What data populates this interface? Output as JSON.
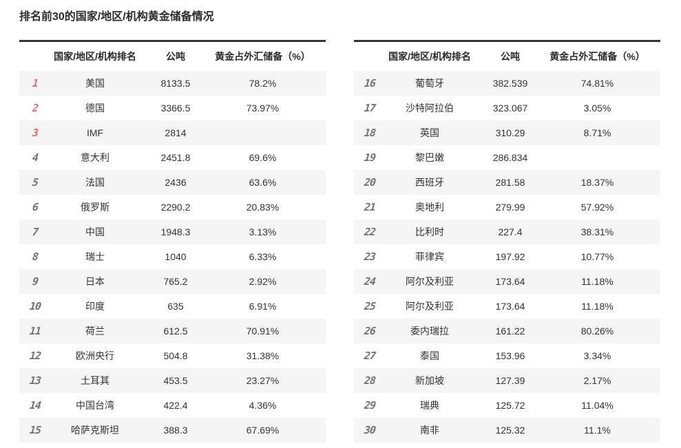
{
  "page_title": "排名前30的国家/地区/机构黄金储备情况",
  "colors": {
    "rank_top3": "#f4696a",
    "rank_default": "#737373",
    "text": "#333333",
    "row_stripe": "#f5f5f5",
    "table_top_border": "#333333"
  },
  "chart_data": {
    "type": "table",
    "title": "排名前30的国家/地区/机构黄金储备情况",
    "column_headers": {
      "rank": "",
      "name": "国家/地区/机构排名",
      "tons": "公吨",
      "percent": "黄金占外汇储备（%）"
    },
    "layout": {
      "tables_side_by_side": 2,
      "rows_per_table": 15,
      "zebra_striping": true,
      "top3_ranks_red": true
    },
    "rows": [
      {
        "rank": "1",
        "name": "美国",
        "tons": "8133.5",
        "percent": "78.2%",
        "highlight": true
      },
      {
        "rank": "2",
        "name": "德国",
        "tons": "3366.5",
        "percent": "73.97%",
        "highlight": true
      },
      {
        "rank": "3",
        "name": "IMF",
        "tons": "2814",
        "percent": "",
        "highlight": true
      },
      {
        "rank": "4",
        "name": "意大利",
        "tons": "2451.8",
        "percent": "69.6%",
        "highlight": false
      },
      {
        "rank": "5",
        "name": "法国",
        "tons": "2436",
        "percent": "63.6%",
        "highlight": false
      },
      {
        "rank": "6",
        "name": "俄罗斯",
        "tons": "2290.2",
        "percent": "20.83%",
        "highlight": false
      },
      {
        "rank": "7",
        "name": "中国",
        "tons": "1948.3",
        "percent": "3.13%",
        "highlight": false
      },
      {
        "rank": "8",
        "name": "瑞士",
        "tons": "1040",
        "percent": "6.33%",
        "highlight": false
      },
      {
        "rank": "9",
        "name": "日本",
        "tons": "765.2",
        "percent": "2.92%",
        "highlight": false
      },
      {
        "rank": "10",
        "name": "印度",
        "tons": "635",
        "percent": "6.91%",
        "highlight": false
      },
      {
        "rank": "11",
        "name": "荷兰",
        "tons": "612.5",
        "percent": "70.91%",
        "highlight": false
      },
      {
        "rank": "12",
        "name": "欧洲央行",
        "tons": "504.8",
        "percent": "31.38%",
        "highlight": false
      },
      {
        "rank": "13",
        "name": "土耳其",
        "tons": "453.5",
        "percent": "23.27%",
        "highlight": false
      },
      {
        "rank": "14",
        "name": "中国台湾",
        "tons": "422.4",
        "percent": "4.36%",
        "highlight": false
      },
      {
        "rank": "15",
        "name": "哈萨克斯坦",
        "tons": "388.3",
        "percent": "67.69%",
        "highlight": false
      },
      {
        "rank": "16",
        "name": "葡萄牙",
        "tons": "382.539",
        "percent": "74.81%",
        "highlight": false
      },
      {
        "rank": "17",
        "name": "沙特阿拉伯",
        "tons": "323.067",
        "percent": "3.05%",
        "highlight": false
      },
      {
        "rank": "18",
        "name": "英国",
        "tons": "310.29",
        "percent": "8.71%",
        "highlight": false
      },
      {
        "rank": "19",
        "name": "黎巴嫩",
        "tons": "286.834",
        "percent": "",
        "highlight": false
      },
      {
        "rank": "20",
        "name": "西班牙",
        "tons": "281.58",
        "percent": "18.37%",
        "highlight": false
      },
      {
        "rank": "21",
        "name": "奥地利",
        "tons": "279.99",
        "percent": "57.92%",
        "highlight": false
      },
      {
        "rank": "22",
        "name": "比利时",
        "tons": "227.4",
        "percent": "38.31%",
        "highlight": false
      },
      {
        "rank": "23",
        "name": "菲律宾",
        "tons": "197.92",
        "percent": "10.77%",
        "highlight": false
      },
      {
        "rank": "24",
        "name": "阿尔及利亚",
        "tons": "173.64",
        "percent": "11.18%",
        "highlight": false
      },
      {
        "rank": "25",
        "name": "阿尔及利亚",
        "tons": "173.64",
        "percent": "11.18%",
        "highlight": false
      },
      {
        "rank": "26",
        "name": "委内瑞拉",
        "tons": "161.22",
        "percent": "80.26%",
        "highlight": false
      },
      {
        "rank": "27",
        "name": "泰国",
        "tons": "153.96",
        "percent": "3.34%",
        "highlight": false
      },
      {
        "rank": "28",
        "name": "新加坡",
        "tons": "127.39",
        "percent": "2.17%",
        "highlight": false
      },
      {
        "rank": "29",
        "name": "瑞典",
        "tons": "125.72",
        "percent": "11.04%",
        "highlight": false
      },
      {
        "rank": "30",
        "name": "南非",
        "tons": "125.32",
        "percent": "11.1%",
        "highlight": false
      }
    ]
  }
}
